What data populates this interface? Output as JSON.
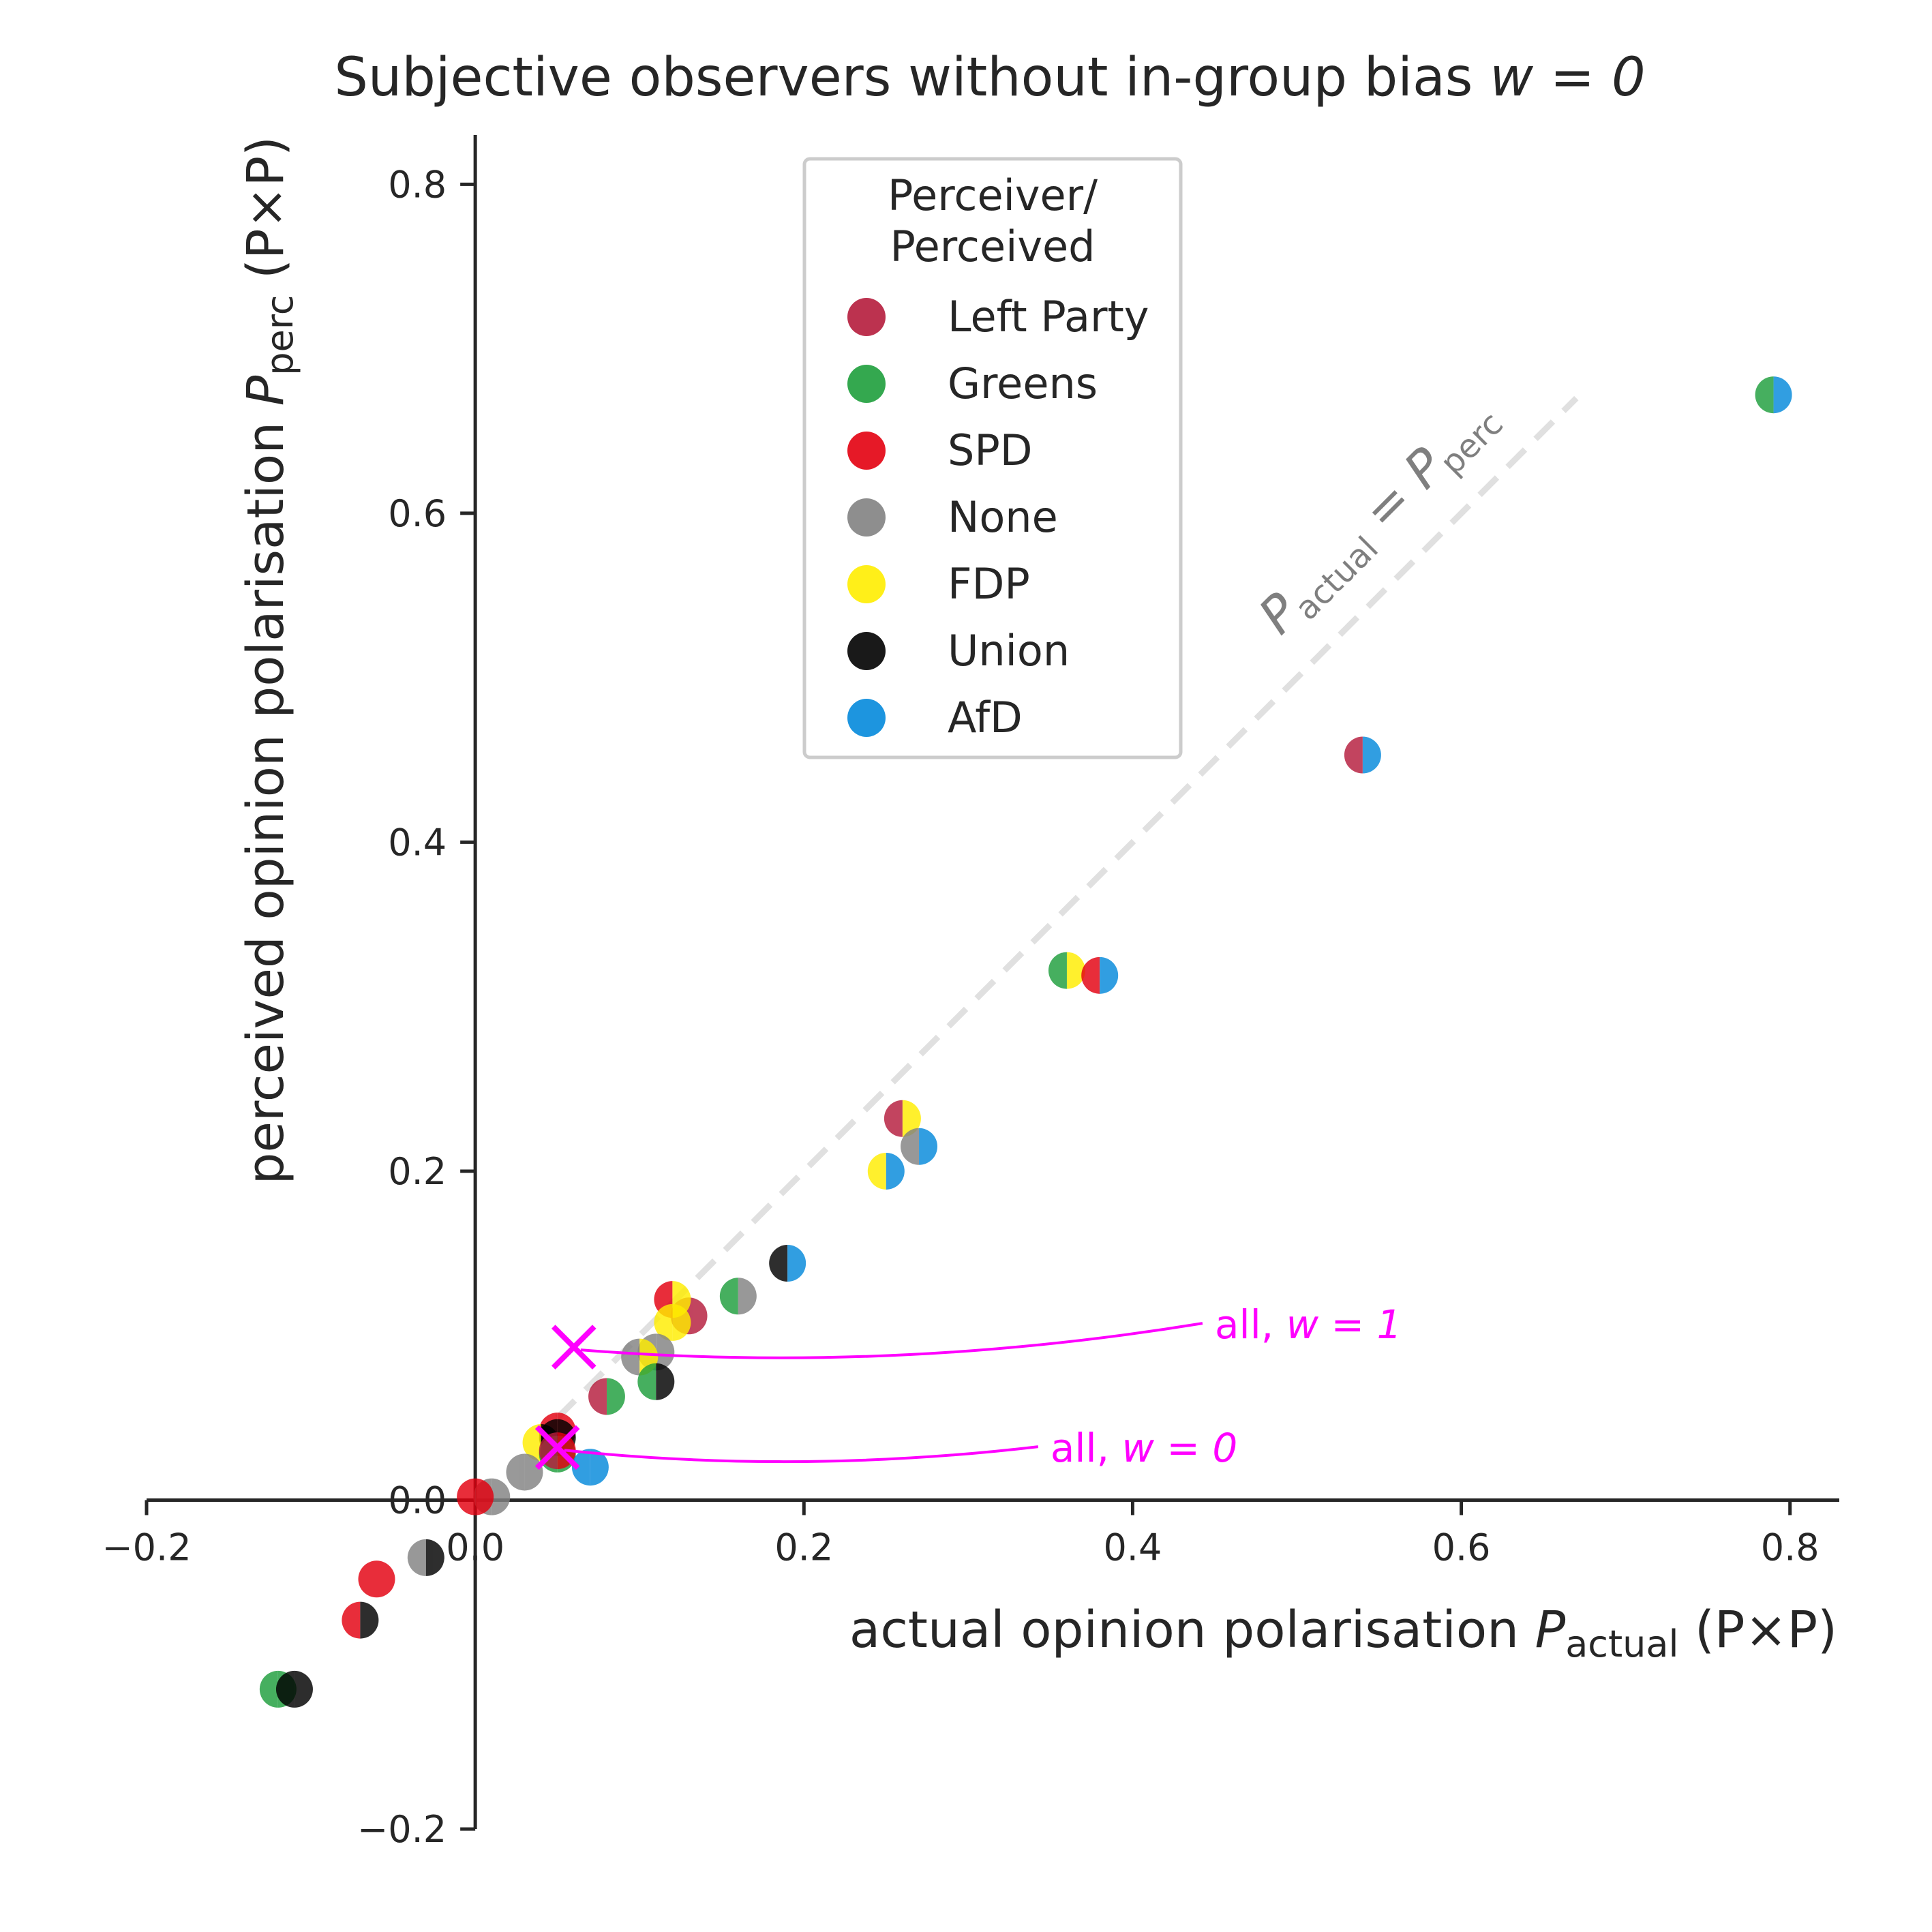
{
  "chart_data": {
    "type": "scatter",
    "title": "Subjective observers without in-group bias",
    "title_math": "w = 0",
    "xlabel": "actual opinion polarisation",
    "xlabel_symbol": "P",
    "xlabel_sub": "actual",
    "xlabel_unit": "(P×P)",
    "ylabel": "perceived opinion polarisation",
    "ylabel_symbol": "P",
    "ylabel_sub": "perc",
    "ylabel_unit": "(P×P)",
    "xlim": [
      -0.2,
      0.83
    ],
    "ylim": [
      -0.2,
      0.83
    ],
    "x_ticks": [
      -0.2,
      0.0,
      0.2,
      0.4,
      0.6,
      0.8
    ],
    "x_tick_labels": [
      "−0.2",
      "0.0",
      "0.2",
      "0.4",
      "0.6",
      "0.8"
    ],
    "y_ticks": [
      -0.2,
      0.0,
      0.2,
      0.4,
      0.6,
      0.8
    ],
    "y_tick_labels": [
      "−0.2",
      "0.0",
      "0.2",
      "0.4",
      "0.6",
      "0.8"
    ],
    "grid": false,
    "legend": {
      "title_line1": "Perceiver/",
      "title_line2": "Perceived",
      "placement": "top-center",
      "entries": [
        {
          "label": "Left Party",
          "color": "#b51c3c"
        },
        {
          "label": "Greens",
          "color": "#1e9e3c"
        },
        {
          "label": "SPD",
          "color": "#e3000f"
        },
        {
          "label": "None",
          "color": "#828282"
        },
        {
          "label": "FDP",
          "color": "#ffed00"
        },
        {
          "label": "Union",
          "color": "#000000"
        },
        {
          "label": "AfD",
          "color": "#0489db"
        }
      ]
    },
    "diagonal": {
      "label_symbol_a": "P",
      "label_sub_a": "actual",
      "label_eq": "=",
      "label_symbol_b": "P",
      "label_sub_b": "perc",
      "range": [
        0.05,
        0.67
      ]
    },
    "points": [
      {
        "x": 0.79,
        "y": 0.672,
        "perceiver": "Greens",
        "perceived": "AfD"
      },
      {
        "x": 0.54,
        "y": 0.453,
        "perceiver": "Left Party",
        "perceived": "AfD"
      },
      {
        "x": 0.36,
        "y": 0.322,
        "perceiver": "Greens",
        "perceived": "FDP"
      },
      {
        "x": 0.38,
        "y": 0.319,
        "perceiver": "SPD",
        "perceived": "AfD"
      },
      {
        "x": 0.26,
        "y": 0.232,
        "perceiver": "Left Party",
        "perceived": "FDP"
      },
      {
        "x": 0.27,
        "y": 0.215,
        "perceiver": "None",
        "perceived": "AfD"
      },
      {
        "x": 0.25,
        "y": 0.2,
        "perceiver": "FDP",
        "perceived": "AfD"
      },
      {
        "x": 0.19,
        "y": 0.144,
        "perceiver": "Union",
        "perceived": "AfD"
      },
      {
        "x": 0.16,
        "y": 0.124,
        "perceiver": "Greens",
        "perceived": "None"
      },
      {
        "x": 0.13,
        "y": 0.112,
        "perceiver": "Left Party",
        "perceived": "Left Party"
      },
      {
        "x": 0.12,
        "y": 0.122,
        "perceiver": "SPD",
        "perceived": "FDP"
      },
      {
        "x": 0.12,
        "y": 0.108,
        "perceiver": "FDP",
        "perceived": "FDP"
      },
      {
        "x": 0.11,
        "y": 0.09,
        "perceiver": "None",
        "perceived": "None"
      },
      {
        "x": 0.1,
        "y": 0.087,
        "perceiver": "None",
        "perceived": "FDP"
      },
      {
        "x": 0.11,
        "y": 0.072,
        "perceiver": "Greens",
        "perceived": "Union"
      },
      {
        "x": 0.08,
        "y": 0.063,
        "perceiver": "Left Party",
        "perceived": "Greens"
      },
      {
        "x": 0.05,
        "y": 0.042,
        "perceiver": "SPD",
        "perceived": "SPD"
      },
      {
        "x": 0.05,
        "y": 0.038,
        "perceiver": "Union",
        "perceived": "Union"
      },
      {
        "x": 0.04,
        "y": 0.035,
        "perceiver": "FDP",
        "perceived": "Union"
      },
      {
        "x": 0.05,
        "y": 0.028,
        "perceiver": "Greens",
        "perceived": "Greens"
      },
      {
        "x": 0.05,
        "y": 0.03,
        "perceiver": "Left Party",
        "perceived": "SPD"
      },
      {
        "x": 0.07,
        "y": 0.02,
        "perceiver": "AfD",
        "perceived": "AfD"
      },
      {
        "x": 0.03,
        "y": 0.017,
        "perceiver": "None",
        "perceived": "None"
      },
      {
        "x": 0.01,
        "y": 0.002,
        "perceiver": "None",
        "perceived": "None"
      },
      {
        "x": 0.0,
        "y": 0.002,
        "perceiver": "SPD",
        "perceived": "SPD"
      },
      {
        "x": -0.03,
        "y": -0.035,
        "perceiver": "None",
        "perceived": "Union"
      },
      {
        "x": -0.06,
        "y": -0.048,
        "perceiver": "SPD",
        "perceived": "SPD"
      },
      {
        "x": -0.07,
        "y": -0.073,
        "perceiver": "SPD",
        "perceived": "Union"
      },
      {
        "x": -0.12,
        "y": -0.115,
        "perceiver": "Greens",
        "perceived": "Greens"
      },
      {
        "x": -0.11,
        "y": -0.115,
        "perceiver": "Union",
        "perceived": "Union"
      }
    ],
    "markers": [
      {
        "x": 0.06,
        "y": 0.093,
        "label_prefix": "all,",
        "label_math": "w = 1",
        "label_x": 0.45,
        "label_y": 0.105
      },
      {
        "x": 0.05,
        "y": 0.032,
        "label_prefix": "all,",
        "label_math": "w = 0",
        "label_x": 0.35,
        "label_y": 0.03
      }
    ],
    "marker_color": "#ff00ff"
  }
}
